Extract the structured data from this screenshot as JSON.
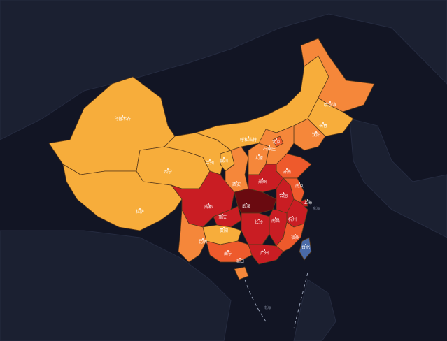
{
  "colors": {
    "background": "#121524",
    "level_1": "#f7ad3b",
    "level_2": "#f5873a",
    "level_3": "#ee5a2c",
    "level_4": "#c91d23",
    "level_5": "#6a0a10",
    "sea_island": "#4a6aa8"
  },
  "regions": [
    {
      "id": "xinjiang",
      "level": "level_1",
      "label": "乌鲁木齐"
    },
    {
      "id": "xizang",
      "level": "level_1",
      "label": "拉萨"
    },
    {
      "id": "qinghai",
      "level": "level_1",
      "label": "西宁"
    },
    {
      "id": "gansu",
      "level": "level_1",
      "label": "兰州"
    },
    {
      "id": "neimenggu",
      "level": "level_1",
      "label": "呼和浩特"
    },
    {
      "id": "heilongjiang",
      "level": "level_2",
      "label": "哈尔滨"
    },
    {
      "id": "jilin",
      "level": "level_1",
      "label": "长春"
    },
    {
      "id": "liaoning",
      "level": "level_2",
      "label": "沈阳"
    },
    {
      "id": "ningxia",
      "level": "level_1",
      "label": "银川"
    },
    {
      "id": "shaanxi",
      "level": "level_2",
      "label": "西安"
    },
    {
      "id": "shanxi",
      "level": "level_2",
      "label": "太原"
    },
    {
      "id": "hebei",
      "level": "level_2",
      "label": "石家庄"
    },
    {
      "id": "beijing",
      "level": "level_3",
      "label": "北京"
    },
    {
      "id": "shandong",
      "level": "level_3",
      "label": "济南"
    },
    {
      "id": "henan",
      "level": "level_4",
      "label": "郑州"
    },
    {
      "id": "sichuan",
      "level": "level_4",
      "label": "成都"
    },
    {
      "id": "chongqing",
      "level": "level_4",
      "label": "重庆"
    },
    {
      "id": "hubei",
      "level": "level_5",
      "label": "武汉"
    },
    {
      "id": "anhui",
      "level": "level_4",
      "label": "合肥"
    },
    {
      "id": "jiangsu",
      "level": "level_3",
      "label": "南京"
    },
    {
      "id": "shanghai",
      "level": "level_4",
      "label": "上海"
    },
    {
      "id": "zhejiang",
      "level": "level_4",
      "label": "杭州"
    },
    {
      "id": "hunan",
      "level": "level_4",
      "label": "长沙"
    },
    {
      "id": "jiangxi",
      "level": "level_4",
      "label": "南昌"
    },
    {
      "id": "guizhou",
      "level": "level_1",
      "label": "贵阳"
    },
    {
      "id": "yunnan",
      "level": "level_2",
      "label": "昆明"
    },
    {
      "id": "guangxi",
      "level": "level_3",
      "label": "南宁"
    },
    {
      "id": "guangdong",
      "level": "level_4",
      "label": "广州"
    },
    {
      "id": "fujian",
      "level": "level_3",
      "label": "福州"
    },
    {
      "id": "hainan",
      "level": "level_2",
      "label": "海口"
    },
    {
      "id": "taiwan",
      "level": "sea_island",
      "label": "台北"
    }
  ],
  "sea_labels": {
    "east_sea": "东海",
    "south_sea": "南海"
  }
}
